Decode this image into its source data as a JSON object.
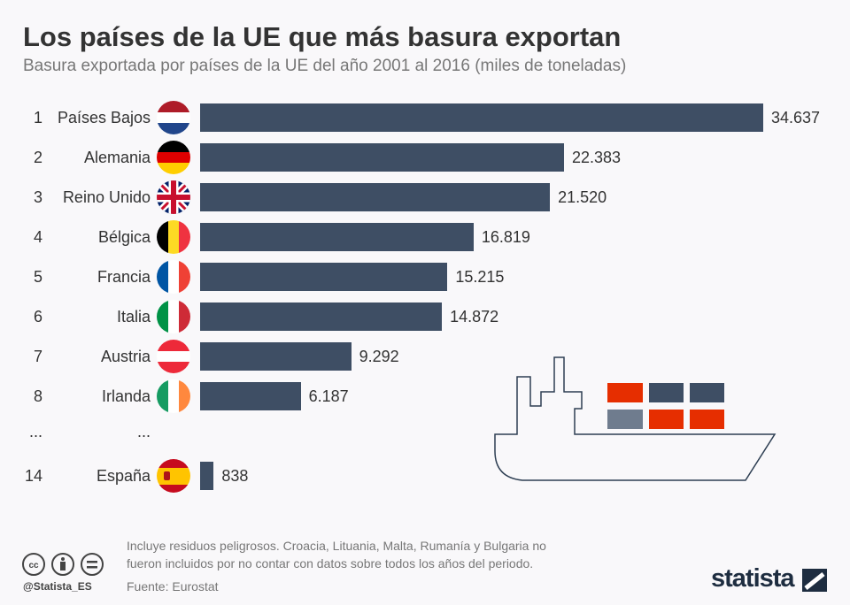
{
  "title": "Los países de la UE que más basura exportan",
  "subtitle": "Basura exportada por países de la UE del año 2001 al 2016 (miles de toneladas)",
  "chart_data": {
    "type": "bar",
    "orientation": "horizontal",
    "categories": [
      "Países Bajos",
      "Alemania",
      "Reino Unido",
      "Bélgica",
      "Francia",
      "Italia",
      "Austria",
      "Irlanda",
      "España"
    ],
    "ranks": [
      "1",
      "2",
      "3",
      "4",
      "5",
      "6",
      "7",
      "8",
      "14"
    ],
    "values": [
      34637,
      22383,
      21520,
      16819,
      15215,
      14872,
      9292,
      6187,
      838
    ],
    "labels": [
      "34.637",
      "22.383",
      "21.520",
      "16.819",
      "15.215",
      "14.872",
      "9.292",
      "6.187",
      "838"
    ],
    "ellipsis_rank": "...",
    "ellipsis_name": "...",
    "bar_color": "#3e4e64"
  },
  "footer": {
    "note1": "Incluye residuos peligrosos. Croacia, Lituania, Malta, Rumanía y Bulgaria no",
    "note2": "fueron incluidos por no contar con datos sobre todos los años del periodo.",
    "source": "Fuente: Eurostat",
    "handle": "@Statista_ES",
    "logo": "statista"
  },
  "colors": {
    "container_red": "#e62e00",
    "container_dark": "#3e4e64",
    "container_grey": "#6f7c8e"
  }
}
